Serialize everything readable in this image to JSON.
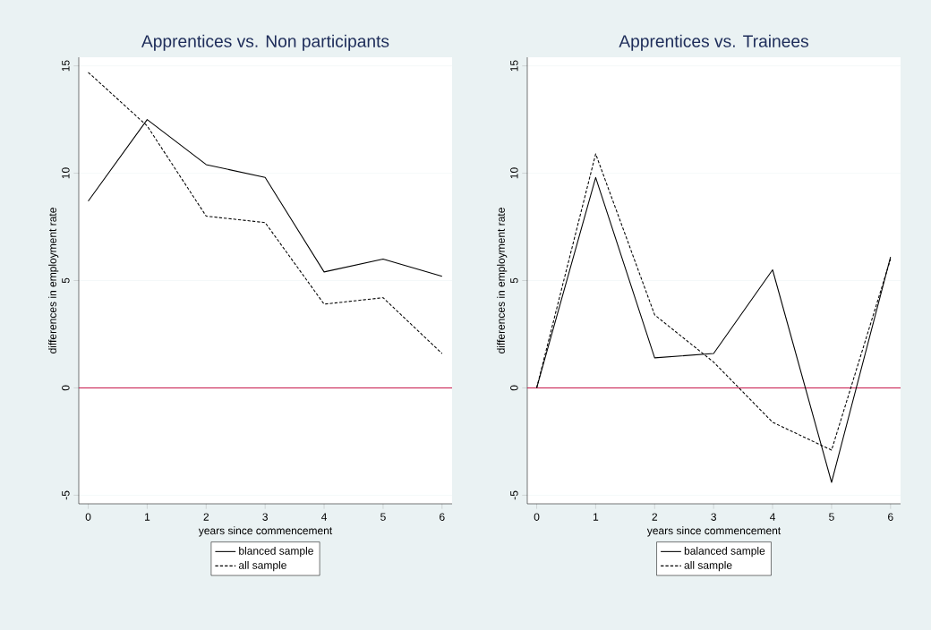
{
  "chart_data": [
    {
      "type": "line",
      "title": "Apprentices vs. Non participants",
      "xlabel": "years since commencement",
      "ylabel": "differences in employment rate",
      "x": [
        0,
        1,
        2,
        3,
        4,
        5,
        6
      ],
      "xlim": [
        -0.16,
        6.17
      ],
      "ylim": [
        -5.4,
        15.4
      ],
      "xticks": [
        0,
        1,
        2,
        3,
        4,
        5,
        6
      ],
      "yticks": [
        -5,
        0,
        5,
        10,
        15
      ],
      "grid": "y",
      "legend": "bottom",
      "ref_lines": [
        {
          "axis": "y",
          "value": 0,
          "color": "#c8164a"
        }
      ],
      "series": [
        {
          "name": "blanced sample",
          "color": "#000000",
          "line_style": "solid",
          "values": [
            8.7,
            12.5,
            10.4,
            9.8,
            5.4,
            6.0,
            5.2
          ]
        },
        {
          "name": "all sample",
          "color": "#000000",
          "line_style": "dashed",
          "values": [
            14.7,
            12.2,
            8.0,
            7.7,
            3.9,
            4.2,
            1.6
          ]
        }
      ]
    },
    {
      "type": "line",
      "title": "Apprentices vs. Trainees",
      "xlabel": "years since commencement",
      "ylabel": "differences in employment rate",
      "x": [
        0,
        1,
        2,
        3,
        4,
        5,
        6
      ],
      "xlim": [
        -0.16,
        6.17
      ],
      "ylim": [
        -5.4,
        15.4
      ],
      "xticks": [
        0,
        1,
        2,
        3,
        4,
        5,
        6
      ],
      "yticks": [
        -5,
        0,
        5,
        10,
        15
      ],
      "grid": "y",
      "legend": "bottom",
      "ref_lines": [
        {
          "axis": "y",
          "value": 0,
          "color": "#c8164a"
        }
      ],
      "series": [
        {
          "name": "balanced sample",
          "color": "#000000",
          "line_style": "solid",
          "values": [
            0,
            9.8,
            1.4,
            1.6,
            5.5,
            -4.4,
            6.1
          ]
        },
        {
          "name": "all sample",
          "color": "#000000",
          "line_style": "dashed",
          "values": [
            0,
            10.9,
            3.4,
            1.2,
            -1.6,
            -2.9,
            6.0
          ]
        }
      ]
    }
  ]
}
